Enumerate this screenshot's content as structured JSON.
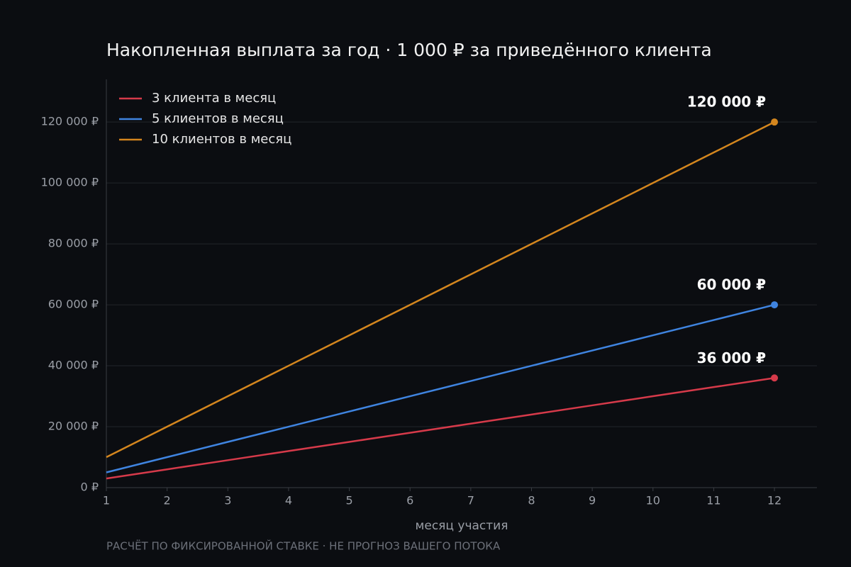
{
  "chart_data": {
    "type": "line",
    "title": "Накопленная выплата за год · 1 000 ₽ за приведённого клиента",
    "xlabel": "месяц участия",
    "footnote": "РАСЧЁТ ПО ФИКСИРОВАННОЙ СТАВКЕ · НЕ ПРОГНОЗ ВАШЕГО ПОТОКА",
    "x": [
      1,
      2,
      3,
      4,
      5,
      6,
      7,
      8,
      9,
      10,
      11,
      12
    ],
    "series": [
      {
        "name": "3 клиента в месяц",
        "color": "#d63a4a",
        "values": [
          3000,
          6000,
          9000,
          12000,
          15000,
          18000,
          21000,
          24000,
          27000,
          30000,
          33000,
          36000
        ],
        "value_labels": [
          null,
          null,
          null,
          null,
          null,
          null,
          null,
          null,
          null,
          null,
          null,
          "36 000 ₽"
        ]
      },
      {
        "name": "5 клиентов в месяц",
        "color": "#3f84e0",
        "values": [
          5000,
          10000,
          15000,
          20000,
          25000,
          30000,
          35000,
          40000,
          45000,
          50000,
          55000,
          60000
        ],
        "value_labels": [
          null,
          null,
          null,
          null,
          null,
          null,
          null,
          null,
          null,
          null,
          null,
          "60 000 ₽"
        ]
      },
      {
        "name": "10 клиентов в месяц",
        "color": "#d4861e",
        "values": [
          10000,
          20000,
          30000,
          40000,
          50000,
          60000,
          70000,
          80000,
          90000,
          100000,
          110000,
          120000
        ],
        "value_labels": [
          null,
          null,
          null,
          null,
          null,
          null,
          null,
          null,
          null,
          null,
          null,
          "120 000 ₽"
        ]
      }
    ],
    "xlim": [
      1,
      12.7
    ],
    "ylim": [
      0,
      134000
    ],
    "xticks": [
      1,
      2,
      3,
      4,
      5,
      6,
      7,
      8,
      9,
      10,
      11,
      12
    ],
    "yticks": [
      {
        "value": 0,
        "label": "0 ₽"
      },
      {
        "value": 20000,
        "label": "20 000 ₽"
      },
      {
        "value": 40000,
        "label": "40 000 ₽"
      },
      {
        "value": 60000,
        "label": "60 000 ₽"
      },
      {
        "value": 80000,
        "label": "80 000 ₽"
      },
      {
        "value": 100000,
        "label": "100 000 ₽"
      },
      {
        "value": 120000,
        "label": "120 000 ₽"
      }
    ],
    "grid": true,
    "legend": "upper left"
  }
}
